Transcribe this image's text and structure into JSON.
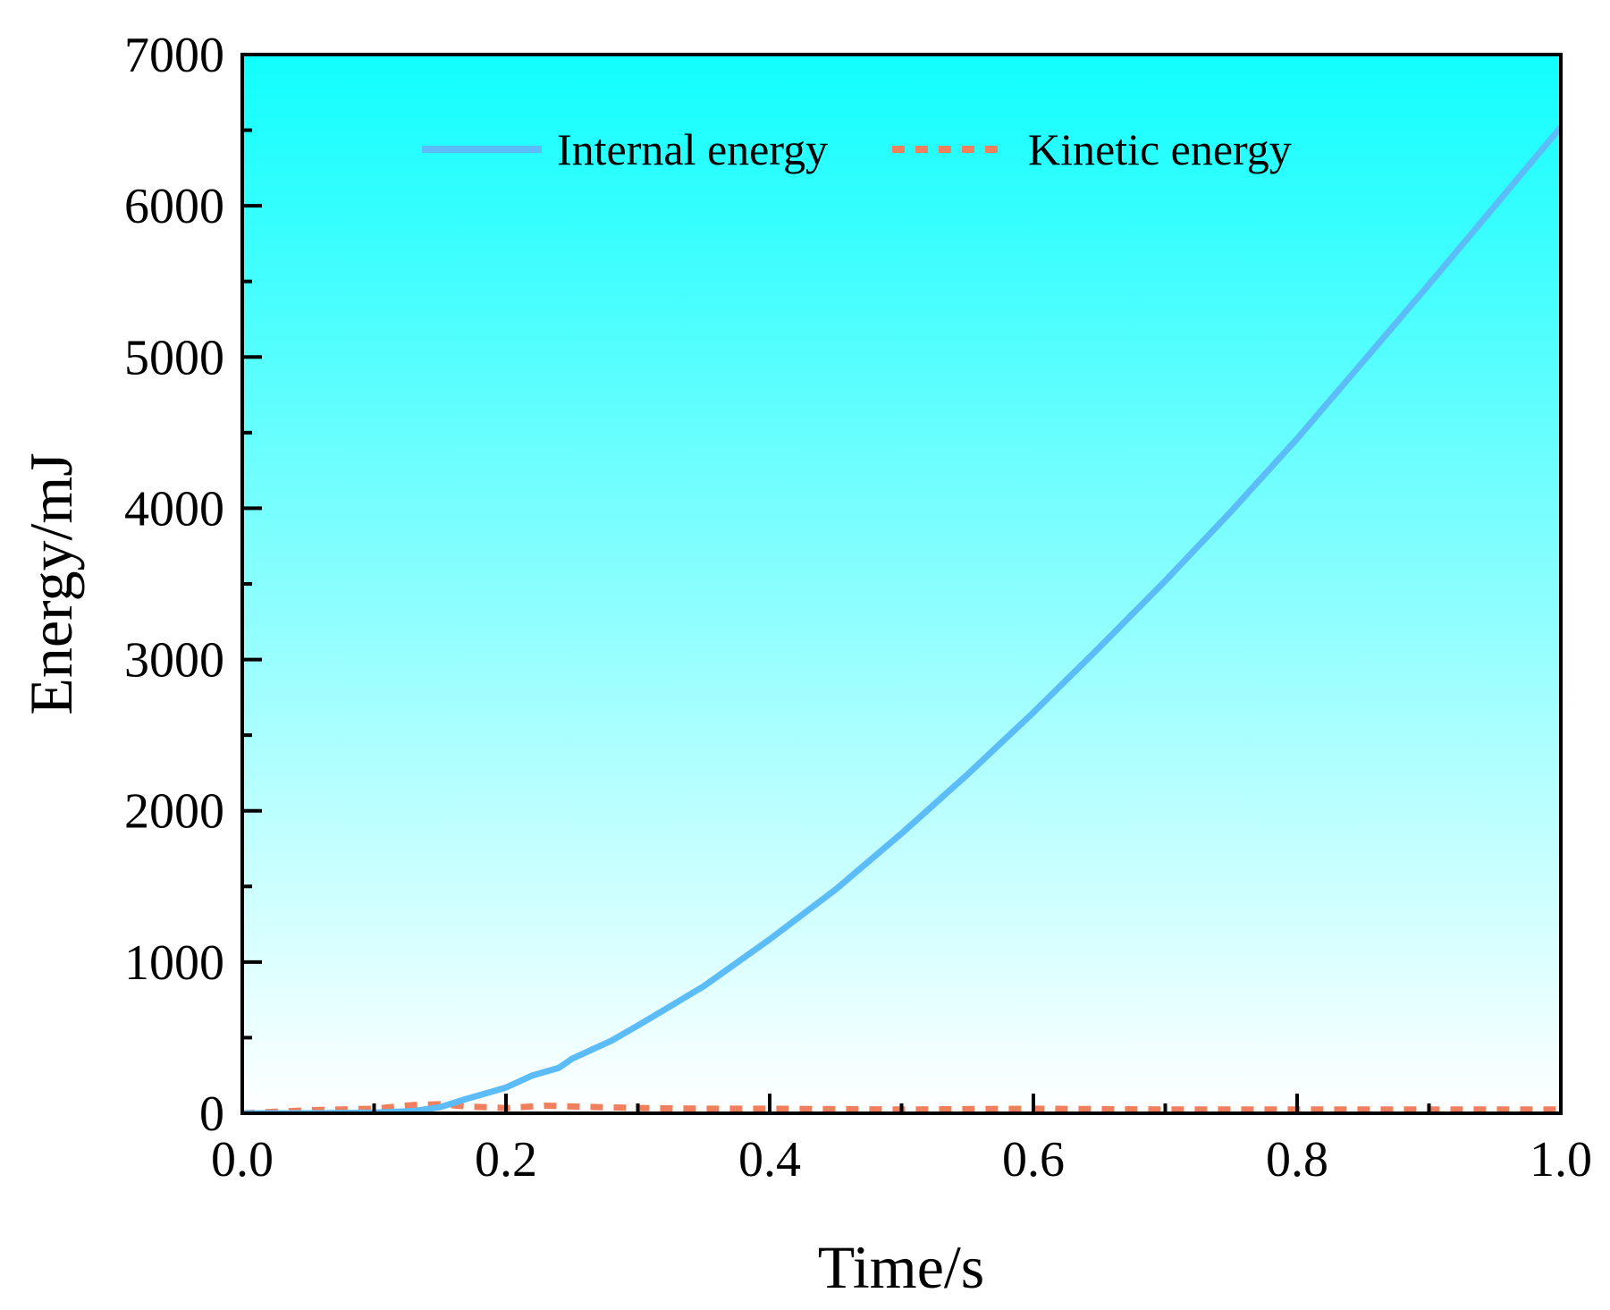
{
  "chart_data": {
    "type": "line",
    "title": "",
    "xlabel": "Time/s",
    "ylabel": "Energy/mJ",
    "xlim": [
      0.0,
      1.0
    ],
    "ylim": [
      0,
      7000
    ],
    "x_ticks": [
      0.0,
      0.2,
      0.4,
      0.6,
      0.8,
      1.0
    ],
    "x_tick_labels": [
      "0.0",
      "0.2",
      "0.4",
      "0.6",
      "0.8",
      "1.0"
    ],
    "y_ticks": [
      0,
      1000,
      2000,
      3000,
      4000,
      5000,
      6000,
      7000
    ],
    "y_tick_labels": [
      "0",
      "1000",
      "2000",
      "3000",
      "4000",
      "5000",
      "6000",
      "7000"
    ],
    "grid": false,
    "legend_position": "top-center",
    "background_gradient": [
      "#11fefe",
      "#ffffff"
    ],
    "series": [
      {
        "name": "Internal energy",
        "style": "solid",
        "color": "#5bbcf7",
        "x": [
          0.0,
          0.05,
          0.1,
          0.13,
          0.15,
          0.17,
          0.18,
          0.2,
          0.22,
          0.24,
          0.25,
          0.28,
          0.3,
          0.35,
          0.4,
          0.45,
          0.5,
          0.55,
          0.6,
          0.65,
          0.7,
          0.75,
          0.8,
          0.85,
          0.9,
          0.95,
          1.0
        ],
        "y": [
          0,
          0,
          5,
          15,
          40,
          95,
          120,
          170,
          250,
          300,
          360,
          480,
          580,
          840,
          1150,
          1480,
          1850,
          2240,
          2650,
          3080,
          3520,
          3980,
          4460,
          4970,
          5480,
          6000,
          6520
        ]
      },
      {
        "name": "Kinetic energy",
        "style": "dashed",
        "color": "#f07f5d",
        "x": [
          0.0,
          0.05,
          0.1,
          0.13,
          0.15,
          0.17,
          0.2,
          0.23,
          0.25,
          0.3,
          0.35,
          0.4,
          0.5,
          0.6,
          0.7,
          0.8,
          0.9,
          1.0
        ],
        "y": [
          0,
          20,
          30,
          55,
          60,
          45,
          35,
          50,
          45,
          35,
          30,
          30,
          25,
          30,
          25,
          25,
          25,
          25
        ]
      }
    ]
  }
}
